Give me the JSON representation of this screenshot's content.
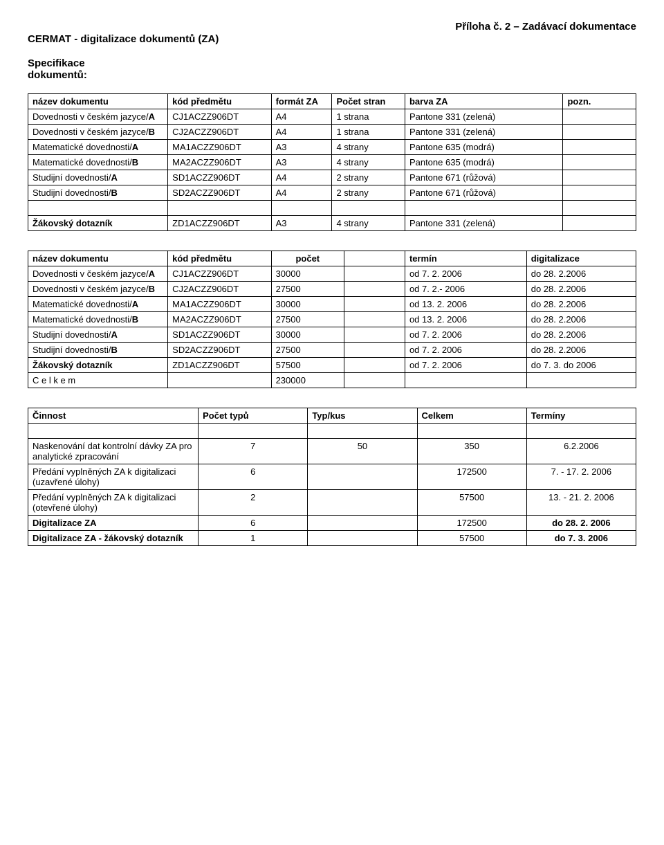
{
  "header": {
    "left_title": "CERMAT -  digitalizace dokumentů (ZA)",
    "right_title": "Příloha č. 2 – Zadávací dokumentace",
    "spec_heading_line1": "Specifikace",
    "spec_heading_line2": "dokumentů:"
  },
  "table1": {
    "headers": {
      "c1": "název dokumentu",
      "c2": "kód předmětu",
      "c3": "formát ZA",
      "c4": "Počet stran",
      "c5": "barva ZA",
      "c6": "pozn."
    },
    "rows": [
      {
        "c1": "Dovednosti v českém jazyce/<b>A</b>",
        "c2": "CJ1ACZZ906DT",
        "c3": "A4",
        "c4": "1 strana",
        "c5": "Pantone 331 (zelená)",
        "c6": ""
      },
      {
        "c1": "Dovednosti v českém jazyce/<b>B</b>",
        "c2": "CJ2ACZZ906DT",
        "c3": "A4",
        "c4": "1 strana",
        "c5": "Pantone 331 (zelená)",
        "c6": ""
      },
      {
        "c1": "Matematické dovednosti/<b>A</b>",
        "c2": "MA1ACZZ906DT",
        "c3": "A3",
        "c4": "4 strany",
        "c5": "Pantone 635 (modrá)",
        "c6": ""
      },
      {
        "c1": "Matematické dovednosti/<b>B</b>",
        "c2": "MA2ACZZ906DT",
        "c3": "A3",
        "c4": "4 strany",
        "c5": "Pantone 635 (modrá)",
        "c6": ""
      },
      {
        "c1": "Studijní dovednosti/<b>A</b>",
        "c2": "SD1ACZZ906DT",
        "c3": "A4",
        "c4": "2 strany",
        "c5": "Pantone 671 (růžová)",
        "c6": ""
      },
      {
        "c1": "Studijní dovednosti/<b>B</b>",
        "c2": "SD2ACZZ906DT",
        "c3": "A4",
        "c4": "2 strany",
        "c5": "Pantone 671 (růžová)",
        "c6": ""
      }
    ],
    "footer": {
      "c1": "<b>Žákovský dotazník</b>",
      "c2": "ZD1ACZZ906DT",
      "c3": "A3",
      "c4": "4 strany",
      "c5": "Pantone 331 (zelená)",
      "c6": ""
    }
  },
  "table2": {
    "headers": {
      "c1": "název dokumentu",
      "c2": "kód předmětu",
      "c3": "počet",
      "c4": "",
      "c5": "termín",
      "c6": "digitalizace"
    },
    "rows": [
      {
        "c1": "Dovednosti v českém jazyce/<b>A</b>",
        "c2": "CJ1ACZZ906DT",
        "c3": "30000",
        "c4": "",
        "c5": "od 7. 2. 2006",
        "c6": "do 28. 2.2006"
      },
      {
        "c1": "Dovednosti v českém jazyce/<b>B</b>",
        "c2": "CJ2ACZZ906DT",
        "c3": "27500",
        "c4": "",
        "c5": "od 7. 2.- 2006",
        "c6": "do 28. 2.2006"
      },
      {
        "c1": "Matematické dovednosti/<b>A</b>",
        "c2": "MA1ACZZ906DT",
        "c3": "30000",
        "c4": "",
        "c5": "od 13. 2. 2006",
        "c6": "do 28. 2.2006"
      },
      {
        "c1": "Matematické dovednosti/<b>B</b>",
        "c2": "MA2ACZZ906DT",
        "c3": "27500",
        "c4": "",
        "c5": "od 13. 2. 2006",
        "c6": "do 28. 2.2006"
      },
      {
        "c1": "Studijní dovednosti/<b>A</b>",
        "c2": "SD1ACZZ906DT",
        "c3": "30000",
        "c4": "",
        "c5": "od 7. 2. 2006",
        "c6": "do 28. 2.2006"
      },
      {
        "c1": "Studijní dovednosti/<b>B</b>",
        "c2": "SD2ACZZ906DT",
        "c3": "27500",
        "c4": "",
        "c5": "od 7. 2. 2006",
        "c6": "do 28. 2.2006"
      }
    ],
    "footer1": {
      "c1": "<b>Žákovský dotazník</b>",
      "c2": "ZD1ACZZ906DT",
      "c3": "57500",
      "c4": "",
      "c5": "od 7. 2. 2006",
      "c6": "do 7. 3. do 2006"
    },
    "footer2": {
      "c1": "C e l k e m",
      "c2": "",
      "c3": "230000",
      "c4": "",
      "c5": "",
      "c6": ""
    }
  },
  "table3": {
    "headers": {
      "c1": "Činnost",
      "c2": "Počet typů",
      "c3": "Typ/kus",
      "c4": "Celkem",
      "c5": "Termíny"
    },
    "rows": [
      {
        "c1": "Naskenování dat kontrolní dávky ZA pro analytické zpracování",
        "c2": "7",
        "c3": "50",
        "c4": "350",
        "c5": "6.2.2006"
      },
      {
        "c1": "Předání vyplněných ZA k digitalizaci (uzavřené úlohy)",
        "c2": "6",
        "c3": "",
        "c4": "172500",
        "c5": "7. - 17. 2. 2006"
      },
      {
        "c1": "Předání vyplněných ZA k digitalizaci (otevřené úlohy)",
        "c2": "2",
        "c3": "",
        "c4": "57500",
        "c5": "13. - 21. 2. 2006"
      },
      {
        "c1": "<b>Digitalizace ZA</b>",
        "c2": "6",
        "c3": "",
        "c4": "172500",
        "c5": "<b>do 28. 2. 2006</b>"
      },
      {
        "c1": "<b>Digitalizace ZA - žákovský dotazník</b>",
        "c2": "1",
        "c3": "",
        "c4": "57500",
        "c5": "<b>do 7. 3. 2006</b>"
      }
    ]
  }
}
